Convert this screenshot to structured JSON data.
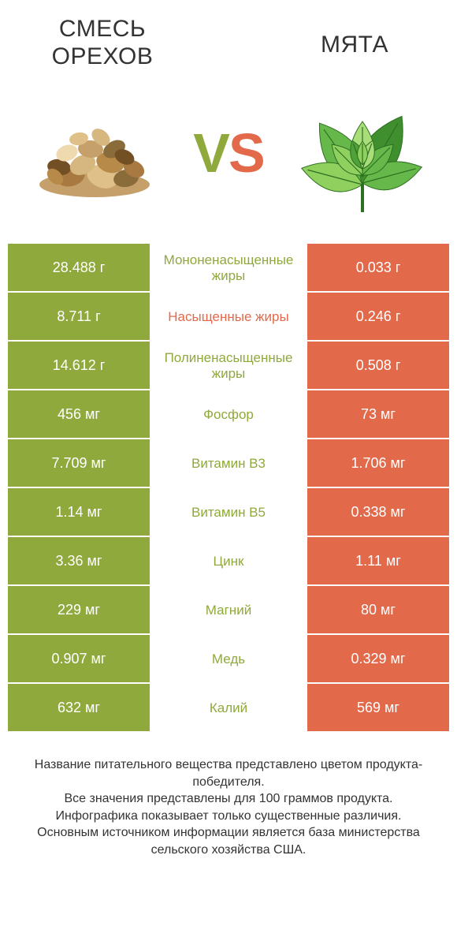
{
  "left_title": "СМЕСЬ ОРЕХОВ",
  "right_title": "МЯТА",
  "vs": {
    "v": "V",
    "s": "S"
  },
  "colors": {
    "green": "#8fa93c",
    "orange": "#e2694a",
    "text": "#333333",
    "white": "#ffffff"
  },
  "rows": [
    {
      "left": "28.488 г",
      "mid": "Мононенасыщенные жиры",
      "right": "0.033 г",
      "winner": "left"
    },
    {
      "left": "8.711 г",
      "mid": "Насыщенные жиры",
      "right": "0.246 г",
      "winner": "right"
    },
    {
      "left": "14.612 г",
      "mid": "Полиненасыщенные жиры",
      "right": "0.508 г",
      "winner": "left"
    },
    {
      "left": "456 мг",
      "mid": "Фосфор",
      "right": "73 мг",
      "winner": "left"
    },
    {
      "left": "7.709 мг",
      "mid": "Витамин B3",
      "right": "1.706 мг",
      "winner": "left"
    },
    {
      "left": "1.14 мг",
      "mid": "Витамин B5",
      "right": "0.338 мг",
      "winner": "left"
    },
    {
      "left": "3.36 мг",
      "mid": "Цинк",
      "right": "1.11 мг",
      "winner": "left"
    },
    {
      "left": "229 мг",
      "mid": "Магний",
      "right": "80 мг",
      "winner": "left"
    },
    {
      "left": "0.907 мг",
      "mid": "Медь",
      "right": "0.329 мг",
      "winner": "left"
    },
    {
      "left": "632 мг",
      "mid": "Калий",
      "right": "569 мг",
      "winner": "left"
    }
  ],
  "footer": [
    "Название питательного вещества представлено цветом продукта-победителя.",
    "Все значения представлены для 100 граммов продукта.",
    "Инфографика показывает только существенные различия.",
    "Основным источником информации является база министерства сельского хозяйства США."
  ],
  "nuts_palette": [
    "#c6a06a",
    "#a97942",
    "#e0c089",
    "#8a6b3a",
    "#735024",
    "#d6b77f",
    "#b78a4a",
    "#efd9ae"
  ],
  "mint_palette": [
    "#3f8f2f",
    "#67b84a",
    "#8fd05f",
    "#2e6f22",
    "#a8dd7a",
    "#4fa23a"
  ]
}
